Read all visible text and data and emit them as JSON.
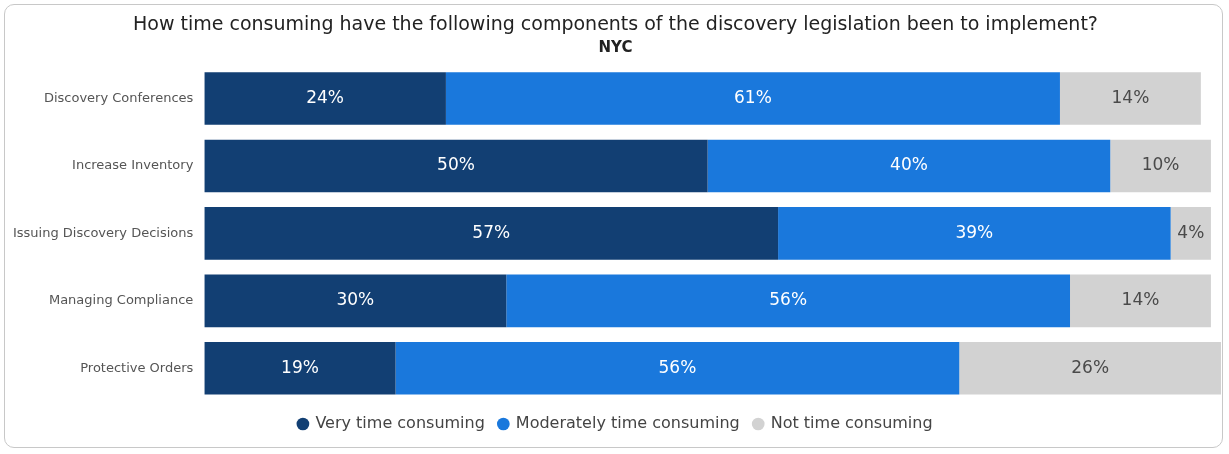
{
  "chart_data": {
    "type": "bar",
    "orientation": "horizontal",
    "stacked": true,
    "title": "How time consuming have the following components of the discovery legislation been to implement?",
    "subtitle": "NYC",
    "categories": [
      "Discovery Conferences",
      "Increase Inventory",
      "Issuing Discovery Decisions",
      "Managing Compliance",
      "Protective Orders"
    ],
    "series": [
      {
        "name": "Very time consuming",
        "color": "#123f73",
        "values": [
          24,
          50,
          57,
          30,
          19
        ],
        "value_labels": [
          "24%",
          "50%",
          "57%",
          "30%",
          "19%"
        ]
      },
      {
        "name": "Moderately time consuming",
        "color": "#1a78dc",
        "values": [
          61,
          40,
          39,
          56,
          56
        ],
        "value_labels": [
          "61%",
          "40%",
          "39%",
          "56%",
          "56%"
        ]
      },
      {
        "name": "Not time consuming",
        "color": "#d2d2d2",
        "values": [
          14,
          10,
          4,
          14,
          26
        ],
        "value_labels": [
          "14%",
          "10%",
          "4%",
          "14%",
          "26%"
        ]
      }
    ],
    "legend": "bottom",
    "grid": false
  }
}
